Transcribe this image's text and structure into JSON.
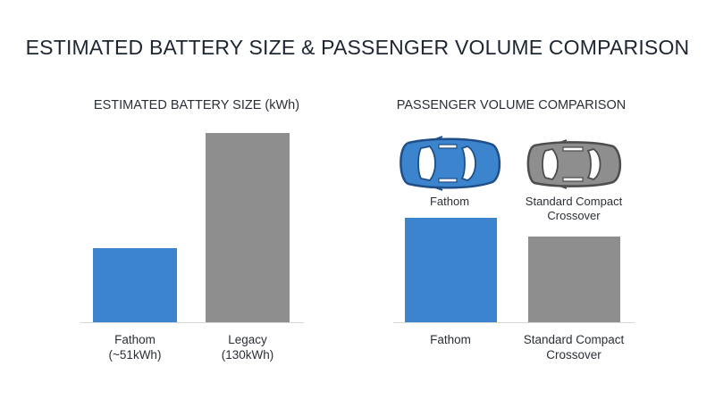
{
  "title": "ESTIMATED BATTERY SIZE & PASSENGER VOLUME COMPARISON",
  "chart_data": [
    {
      "type": "bar",
      "title": "ESTIMATED BATTERY SIZE (kWh)",
      "categories": [
        "Fathom\n(~51kWh)",
        "Legacy\n(130kWh)"
      ],
      "values": [
        51,
        130
      ],
      "ylim": [
        0,
        150
      ],
      "colors": [
        "#3d84cf",
        "#8e8e8e"
      ],
      "grid": false,
      "xlabel": "",
      "ylabel": ""
    },
    {
      "type": "bar",
      "title": "PASSENGER VOLUME COMPARISON",
      "categories": [
        "Fathom",
        "Standard Compact\nCrossover"
      ],
      "values": [
        1.0,
        0.82
      ],
      "ylim": [
        0,
        2.1
      ],
      "colors": [
        "#3d84cf",
        "#8e8e8e"
      ],
      "grid": false,
      "xlabel": "",
      "ylabel": "",
      "car_icons": [
        {
          "label": "Fathom",
          "icon": "car-top-view-icon",
          "color": "#3d84cf"
        },
        {
          "label": "Standard Compact\nCrossover",
          "icon": "car-top-view-icon",
          "color": "#8e8e8e"
        }
      ]
    }
  ]
}
